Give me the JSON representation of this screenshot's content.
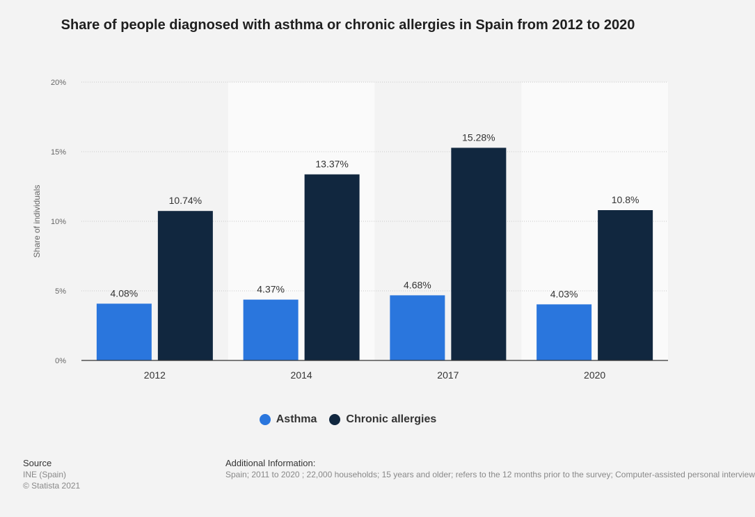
{
  "chart_data": {
    "type": "bar",
    "title": "Share of people diagnosed with asthma or chronic allergies in Spain from 2012 to 2020",
    "categories": [
      "2012",
      "2014",
      "2017",
      "2020"
    ],
    "series": [
      {
        "name": "Asthma",
        "values": [
          4.08,
          4.37,
          4.68,
          4.03
        ],
        "labels": [
          "4.08%",
          "4.37%",
          "4.68%",
          "4.03%"
        ],
        "color": "#2a76dd"
      },
      {
        "name": "Chronic allergies",
        "values": [
          10.74,
          13.37,
          15.28,
          10.8
        ],
        "labels": [
          "10.74%",
          "13.37%",
          "15.28%",
          "10.8%"
        ],
        "color": "#11273f"
      }
    ],
    "xlabel": "",
    "ylabel": "Share of individuals",
    "ylim": [
      0,
      20
    ],
    "yticks": [
      0,
      5,
      10,
      15,
      20
    ],
    "ytick_labels": [
      "0%",
      "5%",
      "10%",
      "15%",
      "20%"
    ],
    "grid": true,
    "legend": "bottom-center"
  },
  "footer": {
    "source_heading": "Source",
    "source_line1": "INE (Spain)",
    "source_line2": "© Statista 2021",
    "info_heading": "Additional Information:",
    "info_text": "Spain; 2011 to 2020 ; 22,000 households; 15 years and older; refers to the 12 months prior to the survey; Computer-assisted personal interview"
  }
}
